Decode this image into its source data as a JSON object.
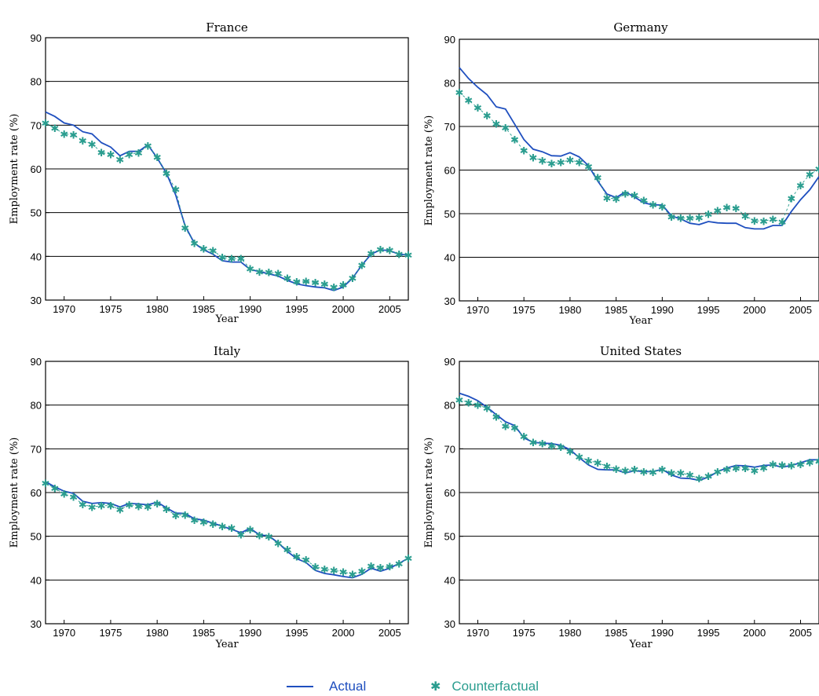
{
  "colors": {
    "actual": "#1f4fbf",
    "counterfactual": "#2a9d8f",
    "grid": "#000000"
  },
  "legend": {
    "actual_label": "Actual",
    "counterfactual_label": "Counterfactual"
  },
  "chart_data": [
    {
      "type": "line",
      "title": "France",
      "xlabel": "Year",
      "ylabel": "Employment rate (%)",
      "xlim": [
        1968,
        2007
      ],
      "ylim": [
        30,
        90
      ],
      "x_ticks": [
        1970,
        1975,
        1980,
        1985,
        1990,
        1995,
        2000,
        2005
      ],
      "y_ticks": [
        30,
        40,
        50,
        60,
        70,
        80,
        90
      ],
      "grid": "horizontal",
      "x": [
        1968,
        1969,
        1970,
        1971,
        1972,
        1973,
        1974,
        1975,
        1976,
        1977,
        1978,
        1979,
        1980,
        1981,
        1982,
        1983,
        1984,
        1985,
        1986,
        1987,
        1988,
        1989,
        1990,
        1991,
        1992,
        1993,
        1994,
        1995,
        1996,
        1997,
        1998,
        1999,
        2000,
        2001,
        2002,
        2003,
        2004,
        2005,
        2006,
        2007
      ],
      "series": [
        {
          "name": "Actual",
          "style": "line",
          "values": [
            73.0,
            72.0,
            70.5,
            70.0,
            68.5,
            68.0,
            66.0,
            65.0,
            63.0,
            64.0,
            64.0,
            65.5,
            62.5,
            59.0,
            54.0,
            47.0,
            43.0,
            41.5,
            40.5,
            39.0,
            38.7,
            38.7,
            37.0,
            36.5,
            36.0,
            35.5,
            34.5,
            33.7,
            33.3,
            33.0,
            32.8,
            32.2,
            33.0,
            35.0,
            38.0,
            40.5,
            41.5,
            41.3,
            40.5,
            40.3
          ]
        },
        {
          "name": "Counterfactual",
          "style": "marker",
          "values": [
            70.5,
            69.3,
            68.0,
            67.8,
            66.5,
            65.7,
            63.8,
            63.3,
            62.2,
            63.3,
            63.7,
            65.3,
            62.7,
            59.0,
            55.3,
            46.5,
            43.0,
            41.8,
            41.3,
            39.8,
            39.5,
            39.5,
            37.2,
            36.5,
            36.4,
            36.1,
            35.0,
            34.2,
            34.3,
            34.0,
            33.7,
            33.0,
            33.5,
            35.0,
            38.0,
            40.7,
            41.6,
            41.4,
            40.5,
            40.3
          ]
        }
      ]
    },
    {
      "type": "line",
      "title": "Germany",
      "xlabel": "Year",
      "ylabel": "Employment rate (%)",
      "xlim": [
        1968,
        2007
      ],
      "ylim": [
        30,
        90
      ],
      "x_ticks": [
        1970,
        1975,
        1980,
        1985,
        1990,
        1995,
        2000,
        2005
      ],
      "y_ticks": [
        30,
        40,
        50,
        60,
        70,
        80,
        90
      ],
      "grid": "horizontal",
      "x": [
        1968,
        1969,
        1970,
        1971,
        1972,
        1973,
        1974,
        1975,
        1976,
        1977,
        1978,
        1979,
        1980,
        1981,
        1982,
        1983,
        1984,
        1985,
        1986,
        1987,
        1988,
        1989,
        1990,
        1991,
        1992,
        1993,
        1994,
        1995,
        1996,
        1997,
        1998,
        1999,
        2000,
        2001,
        2002,
        2003,
        2004,
        2005,
        2006,
        2007
      ],
      "series": [
        {
          "name": "Actual",
          "style": "line",
          "values": [
            83.5,
            81.0,
            79.0,
            77.3,
            74.5,
            74.0,
            70.5,
            67.0,
            64.8,
            64.2,
            63.3,
            63.2,
            64.0,
            63.0,
            61.0,
            57.5,
            54.5,
            53.7,
            55.0,
            53.8,
            52.5,
            52.0,
            52.0,
            49.5,
            48.8,
            47.8,
            47.5,
            48.2,
            47.9,
            47.8,
            47.8,
            46.8,
            46.5,
            46.5,
            47.3,
            47.3,
            50.5,
            53.2,
            55.5,
            58.5
          ]
        },
        {
          "name": "Counterfactual",
          "style": "marker",
          "values": [
            77.8,
            76.0,
            74.3,
            72.5,
            70.6,
            69.7,
            67.0,
            64.5,
            62.9,
            62.2,
            61.5,
            61.8,
            62.3,
            61.8,
            60.8,
            58.3,
            53.6,
            53.4,
            54.6,
            54.2,
            53.1,
            52.1,
            51.6,
            49.3,
            49.0,
            49.0,
            49.1,
            49.9,
            50.7,
            51.4,
            51.3,
            49.5,
            48.4,
            48.3,
            48.7,
            48.1,
            53.5,
            56.5,
            59.0,
            60.3
          ]
        }
      ]
    },
    {
      "type": "line",
      "title": "Italy",
      "xlabel": "Year",
      "ylabel": "Employment rate (%)",
      "xlim": [
        1968,
        2007
      ],
      "ylim": [
        30,
        90
      ],
      "x_ticks": [
        1970,
        1975,
        1980,
        1985,
        1990,
        1995,
        2000,
        2005
      ],
      "y_ticks": [
        30,
        40,
        50,
        60,
        70,
        80,
        90
      ],
      "grid": "horizontal",
      "x": [
        1968,
        1969,
        1970,
        1971,
        1972,
        1973,
        1974,
        1975,
        1976,
        1977,
        1978,
        1979,
        1980,
        1981,
        1982,
        1983,
        1984,
        1985,
        1986,
        1987,
        1988,
        1989,
        1990,
        1991,
        1992,
        1993,
        1994,
        1995,
        1996,
        1997,
        1998,
        1999,
        2000,
        2001,
        2002,
        2003,
        2004,
        2005,
        2006,
        2007
      ],
      "series": [
        {
          "name": "Actual",
          "style": "line",
          "values": [
            62.5,
            61.3,
            60.3,
            59.8,
            58.0,
            57.5,
            57.7,
            57.5,
            56.7,
            57.5,
            57.4,
            57.2,
            57.8,
            56.5,
            55.3,
            55.2,
            54.0,
            53.7,
            53.0,
            52.3,
            51.6,
            50.8,
            51.8,
            50.3,
            50.1,
            48.5,
            46.5,
            44.9,
            44.0,
            42.2,
            41.5,
            41.2,
            40.8,
            40.5,
            41.3,
            42.7,
            42.0,
            42.7,
            43.8,
            45.0
          ]
        },
        {
          "name": "Counterfactual",
          "style": "marker",
          "values": [
            62.2,
            61.0,
            59.7,
            59.0,
            57.3,
            56.7,
            57.0,
            57.0,
            56.1,
            57.2,
            56.9,
            56.8,
            57.5,
            56.2,
            54.8,
            54.9,
            53.7,
            53.3,
            52.8,
            52.3,
            51.9,
            50.4,
            51.6,
            50.2,
            49.9,
            48.4,
            47.0,
            45.4,
            44.6,
            43.0,
            42.5,
            42.2,
            41.9,
            41.3,
            42.0,
            43.2,
            42.8,
            43.1,
            43.7,
            45.0
          ]
        }
      ]
    },
    {
      "type": "line",
      "title": "United States",
      "xlabel": "Year",
      "ylabel": "Employment rate (%)",
      "xlim": [
        1968,
        2007
      ],
      "ylim": [
        30,
        90
      ],
      "x_ticks": [
        1970,
        1975,
        1980,
        1985,
        1990,
        1995,
        2000,
        2005
      ],
      "y_ticks": [
        30,
        40,
        50,
        60,
        70,
        80,
        90
      ],
      "grid": "horizontal",
      "x": [
        1968,
        1969,
        1970,
        1971,
        1972,
        1973,
        1974,
        1975,
        1976,
        1977,
        1978,
        1979,
        1980,
        1981,
        1982,
        1983,
        1984,
        1985,
        1986,
        1987,
        1988,
        1989,
        1990,
        1991,
        1992,
        1993,
        1994,
        1995,
        1996,
        1997,
        1998,
        1999,
        2000,
        2001,
        2002,
        2003,
        2004,
        2005,
        2006,
        2007
      ],
      "series": [
        {
          "name": "Actual",
          "style": "line",
          "values": [
            82.7,
            82.0,
            81.0,
            79.5,
            77.8,
            76.2,
            75.3,
            72.5,
            71.5,
            71.3,
            71.2,
            70.8,
            69.8,
            68.0,
            66.3,
            65.3,
            65.2,
            65.2,
            64.5,
            65.0,
            64.8,
            64.8,
            65.3,
            64.0,
            63.3,
            63.2,
            62.8,
            63.5,
            64.8,
            65.6,
            66.2,
            66.1,
            65.8,
            66.2,
            66.3,
            65.8,
            66.2,
            66.8,
            67.5,
            67.5
          ]
        },
        {
          "name": "Counterfactual",
          "style": "marker",
          "values": [
            81.2,
            80.6,
            80.0,
            79.3,
            77.3,
            75.2,
            74.8,
            72.8,
            71.5,
            71.2,
            70.7,
            70.4,
            69.4,
            68.2,
            67.3,
            66.8,
            66.0,
            65.4,
            65.0,
            65.3,
            64.8,
            64.7,
            65.3,
            64.5,
            64.5,
            64.0,
            63.2,
            63.8,
            64.8,
            65.3,
            65.6,
            65.6,
            65.0,
            65.7,
            66.5,
            66.3,
            66.2,
            66.5,
            66.9,
            67.2
          ]
        }
      ]
    }
  ]
}
